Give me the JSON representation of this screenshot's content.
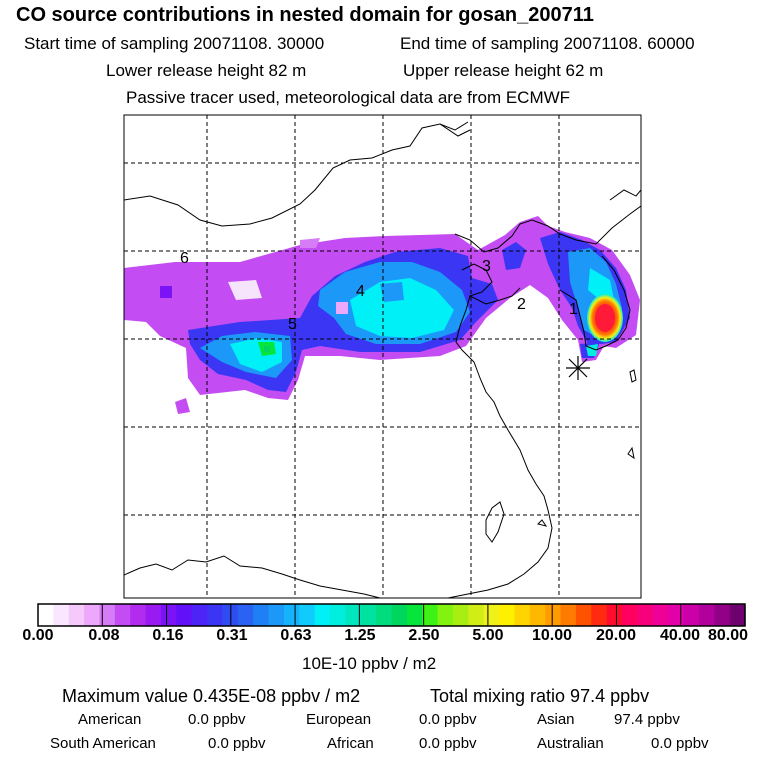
{
  "title": "CO  source contributions in nested domain for gosan_200711",
  "start_time_label": "Start time of sampling 20071108. 30000",
  "end_time_label": "End time of sampling 20071108. 60000",
  "lower_release_label": "Lower release height   82 m",
  "upper_release_label": "Upper release height   62 m",
  "tracer_note": "Passive tracer used, meteorological data are from ECMWF",
  "map": {
    "region_labels": [
      "1",
      "2",
      "3",
      "4",
      "5",
      "6"
    ],
    "receptor_marker": "asterisk-icon"
  },
  "colorbar": {
    "tick_labels": [
      "0.00",
      "0.08",
      "0.16",
      "0.31",
      "0.63",
      "1.25",
      "2.50",
      "5.00",
      "10.00",
      "20.00",
      "40.00",
      "80.00"
    ],
    "units": "10E-10 ppbv / m2",
    "colors": [
      "#ffffff",
      "#fbe6ff",
      "#f5c9fb",
      "#eda8fb",
      "#d57cf6",
      "#c34df2",
      "#b22cf0",
      "#9a1bf2",
      "#7c12f6",
      "#6210f8",
      "#4d23f6",
      "#3b36f4",
      "#2f4cf2",
      "#2a62f4",
      "#1e80f4",
      "#1c98f8",
      "#14b3fb",
      "#12cbfd",
      "#00f0f8",
      "#00eedd",
      "#00e6bf",
      "#00e2a0",
      "#00dc7e",
      "#00d65e",
      "#06e63a",
      "#3ef216",
      "#82f210",
      "#a8ee12",
      "#d0ee16",
      "#f0f01a",
      "#fff000",
      "#ffd400",
      "#ffb800",
      "#ff9c00",
      "#ff7a00",
      "#ff5200",
      "#ff2a10",
      "#ff0b2e",
      "#ff0060",
      "#f7007c",
      "#ef0096",
      "#e200a8",
      "#cc00a8",
      "#b2009c",
      "#920088",
      "#6e0070"
    ]
  },
  "footer": {
    "max_value_label": "Maximum value  0.435E-08 ppbv / m2",
    "total_mixing_label": "Total mixing ratio       97.4 ppbv",
    "regions": [
      {
        "name": "American",
        "value": "0.0 ppbv"
      },
      {
        "name": "European",
        "value": "0.0 ppbv"
      },
      {
        "name": "Asian",
        "value": "97.4 ppbv"
      },
      {
        "name": "South American",
        "value": "0.0 ppbv"
      },
      {
        "name": "African",
        "value": "0.0 ppbv"
      },
      {
        "name": "Australian",
        "value": "0.0 ppbv"
      }
    ]
  }
}
